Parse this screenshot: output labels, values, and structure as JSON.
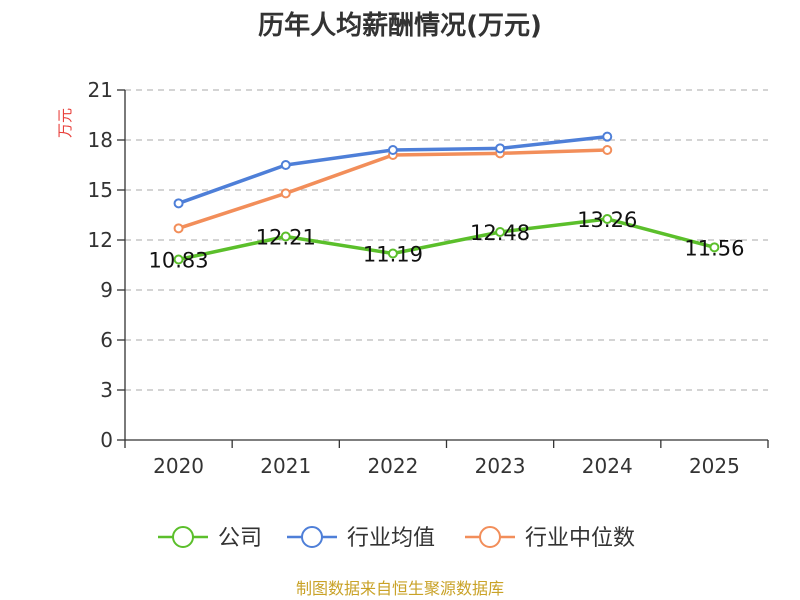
{
  "chart_data": {
    "type": "line",
    "title": "历年人均薪酬情况(万元)",
    "ylabel": "万元",
    "xlabel": "",
    "ylim": [
      0,
      21
    ],
    "yticks": [
      0,
      3,
      6,
      9,
      12,
      15,
      18,
      21
    ],
    "categories": [
      "2020",
      "2021",
      "2022",
      "2023",
      "2024",
      "2025"
    ],
    "grid": true,
    "legend_position": "bottom",
    "series": [
      {
        "name": "公司",
        "color": "#5bbf2b",
        "values": [
          10.83,
          12.21,
          11.19,
          12.48,
          13.26,
          11.56
        ],
        "labels": [
          "10.83",
          "12.21",
          "11.19",
          "12.48",
          "13.26",
          "11.56"
        ]
      },
      {
        "name": "行业均值",
        "color": "#4e7fd8",
        "values": [
          14.2,
          16.5,
          17.4,
          17.5,
          18.2,
          null
        ]
      },
      {
        "name": "行业中位数",
        "color": "#f28e5a",
        "values": [
          12.7,
          14.8,
          17.1,
          17.2,
          17.4,
          null
        ]
      }
    ]
  },
  "footer": {
    "source": "制图数据来自恒生聚源数据库"
  }
}
